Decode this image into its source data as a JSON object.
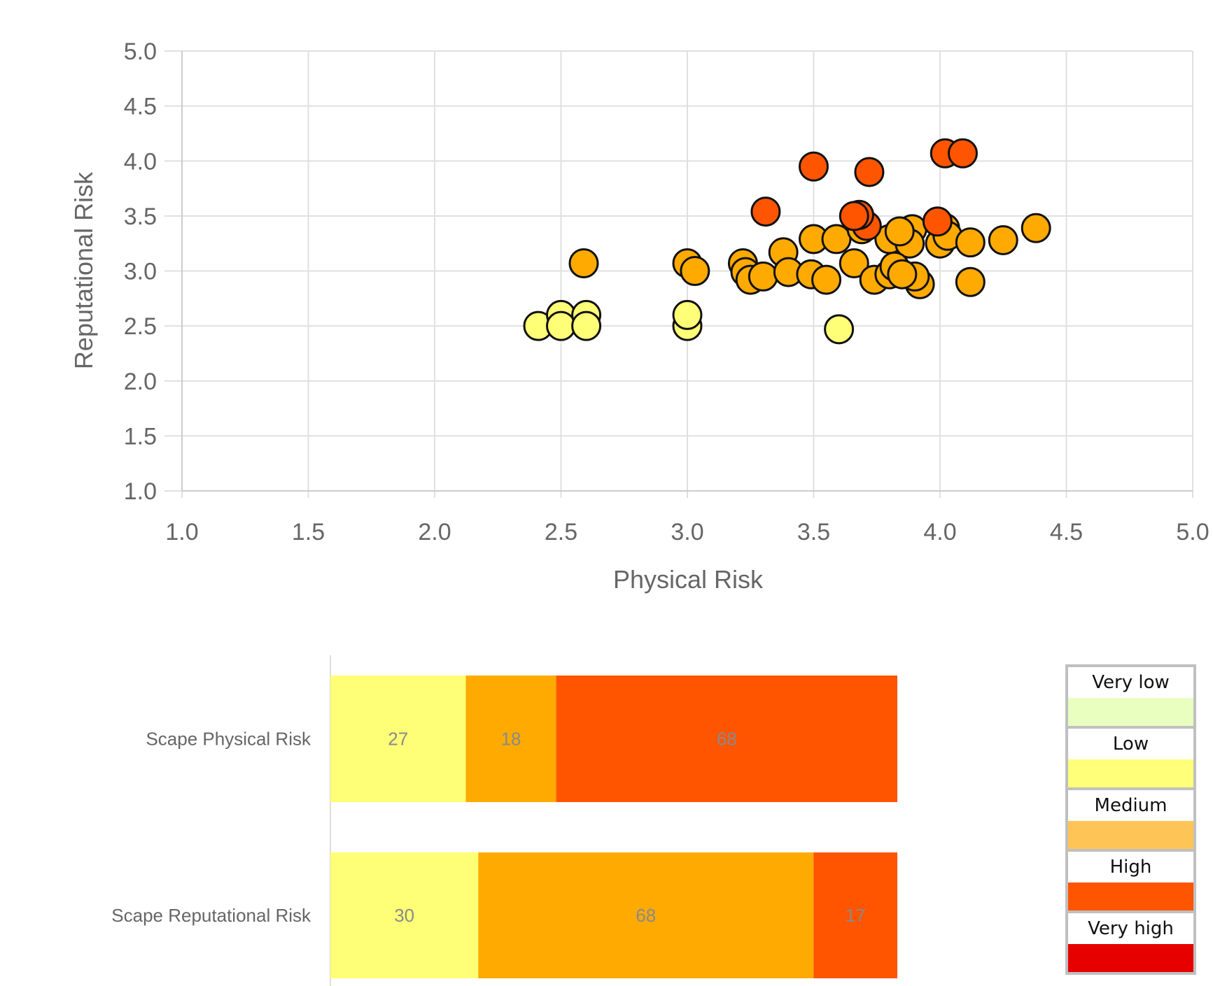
{
  "chart_data": [
    {
      "type": "scatter",
      "xlabel": "Physical Risk",
      "ylabel": "Reputational Risk",
      "xlim": [
        1.0,
        5.0
      ],
      "ylim": [
        1.0,
        5.0
      ],
      "xticks": [
        "1.0",
        "1.5",
        "2.0",
        "2.5",
        "3.0",
        "3.5",
        "4.0",
        "4.5",
        "5.0"
      ],
      "yticks": [
        "1.0",
        "1.5",
        "2.0",
        "2.5",
        "3.0",
        "3.5",
        "4.0",
        "4.5",
        "5.0"
      ],
      "grid": true,
      "colors": {
        "Low": "#ffff77",
        "Medium": "#ffaa00",
        "High": "#ff5500"
      },
      "points": [
        {
          "x": 2.41,
          "y": 2.5,
          "c": "Low"
        },
        {
          "x": 2.5,
          "y": 2.6,
          "c": "Low"
        },
        {
          "x": 2.5,
          "y": 2.5,
          "c": "Low"
        },
        {
          "x": 2.6,
          "y": 2.6,
          "c": "Low"
        },
        {
          "x": 2.6,
          "y": 2.5,
          "c": "Low"
        },
        {
          "x": 3.0,
          "y": 2.5,
          "c": "Low"
        },
        {
          "x": 3.0,
          "y": 2.6,
          "c": "Low"
        },
        {
          "x": 3.6,
          "y": 2.47,
          "c": "Low"
        },
        {
          "x": 2.59,
          "y": 3.07,
          "c": "Medium"
        },
        {
          "x": 3.0,
          "y": 3.07,
          "c": "Medium"
        },
        {
          "x": 3.03,
          "y": 3.0,
          "c": "Medium"
        },
        {
          "x": 3.22,
          "y": 3.07,
          "c": "Medium"
        },
        {
          "x": 3.23,
          "y": 2.99,
          "c": "Medium"
        },
        {
          "x": 3.25,
          "y": 2.92,
          "c": "Medium"
        },
        {
          "x": 3.3,
          "y": 2.95,
          "c": "Medium"
        },
        {
          "x": 3.38,
          "y": 3.17,
          "c": "Medium"
        },
        {
          "x": 3.4,
          "y": 2.99,
          "c": "Medium"
        },
        {
          "x": 3.5,
          "y": 3.29,
          "c": "Medium"
        },
        {
          "x": 3.49,
          "y": 2.97,
          "c": "Medium"
        },
        {
          "x": 3.55,
          "y": 2.92,
          "c": "Medium"
        },
        {
          "x": 3.59,
          "y": 3.29,
          "c": "Medium"
        },
        {
          "x": 3.66,
          "y": 3.07,
          "c": "Medium"
        },
        {
          "x": 3.69,
          "y": 3.38,
          "c": "Medium"
        },
        {
          "x": 3.74,
          "y": 2.92,
          "c": "Medium"
        },
        {
          "x": 3.8,
          "y": 3.29,
          "c": "Medium"
        },
        {
          "x": 3.8,
          "y": 2.97,
          "c": "Medium"
        },
        {
          "x": 3.89,
          "y": 3.38,
          "c": "Medium"
        },
        {
          "x": 3.88,
          "y": 3.25,
          "c": "Medium"
        },
        {
          "x": 3.82,
          "y": 3.04,
          "c": "Medium"
        },
        {
          "x": 3.92,
          "y": 2.88,
          "c": "Medium"
        },
        {
          "x": 3.9,
          "y": 2.95,
          "c": "Medium"
        },
        {
          "x": 3.85,
          "y": 2.97,
          "c": "Medium"
        },
        {
          "x": 4.0,
          "y": 3.25,
          "c": "Medium"
        },
        {
          "x": 4.02,
          "y": 3.39,
          "c": "Medium"
        },
        {
          "x": 4.03,
          "y": 3.32,
          "c": "Medium"
        },
        {
          "x": 4.12,
          "y": 3.26,
          "c": "Medium"
        },
        {
          "x": 4.12,
          "y": 2.9,
          "c": "Medium"
        },
        {
          "x": 4.25,
          "y": 3.28,
          "c": "Medium"
        },
        {
          "x": 4.38,
          "y": 3.39,
          "c": "Medium"
        },
        {
          "x": 3.84,
          "y": 3.36,
          "c": "Medium"
        },
        {
          "x": 3.99,
          "y": 3.45,
          "c": "High"
        },
        {
          "x": 3.71,
          "y": 3.41,
          "c": "High"
        },
        {
          "x": 3.68,
          "y": 3.51,
          "c": "High"
        },
        {
          "x": 3.66,
          "y": 3.5,
          "c": "High"
        },
        {
          "x": 3.31,
          "y": 3.54,
          "c": "High"
        },
        {
          "x": 3.5,
          "y": 3.95,
          "c": "High"
        },
        {
          "x": 3.72,
          "y": 3.9,
          "c": "High"
        },
        {
          "x": 4.02,
          "y": 4.07,
          "c": "High"
        },
        {
          "x": 4.09,
          "y": 4.07,
          "c": "High"
        }
      ]
    },
    {
      "type": "bar",
      "orientation": "horizontal",
      "stacked": "percent",
      "categories": [
        "Scape Physical Risk",
        "Scape Reputational Risk"
      ],
      "series": [
        {
          "color": "#ffff77",
          "values": [
            27,
            30
          ]
        },
        {
          "color": "#ffaa00",
          "values": [
            18,
            68
          ]
        },
        {
          "color": "#ff5500",
          "values": [
            68,
            17
          ]
        }
      ]
    }
  ],
  "legend": {
    "items": [
      {
        "label": "Very low",
        "color": "#e8ffc0"
      },
      {
        "label": "Low",
        "color": "#ffff7a"
      },
      {
        "label": "Medium",
        "color": "#ffc455"
      },
      {
        "label": "High",
        "color": "#ff5500"
      },
      {
        "label": "Very high",
        "color": "#e60000"
      }
    ]
  }
}
